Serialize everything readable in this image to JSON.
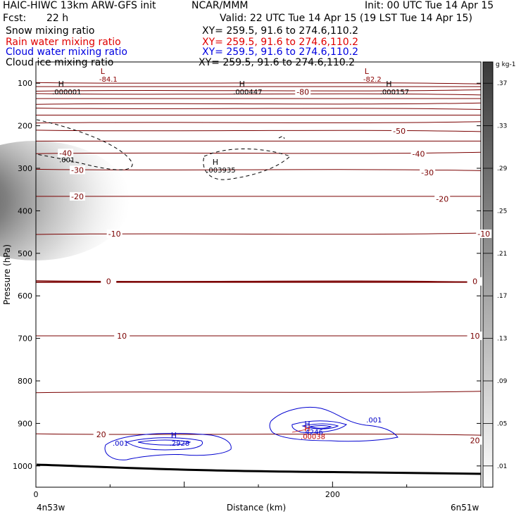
{
  "header": {
    "model": "HAIC-HIWC 13km ARW-GFS init",
    "org": "NCAR/MMM",
    "init": "Init: 00 UTC Tue 14 Apr 15",
    "fcst_label": "Fcst:",
    "fcst_value": "22 h",
    "valid": "Valid: 22 UTC Tue 14 Apr 15 (19 LST Tue 14 Apr 15)",
    "fields": [
      {
        "name": "Snow mixing ratio",
        "xy": "XY= 259.5, 91.6 to 274.6,110.2",
        "color": "#000000"
      },
      {
        "name": "Rain water mixing ratio",
        "xy": "XY= 259.5, 91.6 to 274.6,110.2",
        "color": "#e00000"
      },
      {
        "name": "Cloud water mixing ratio",
        "xy": "XY= 259.5, 91.6 to 274.6,110.2",
        "color": "#0000e0"
      },
      {
        "name": "Cloud ice mixing ratio",
        "xy": "XY= 259.5, 91.6 to 274.6,110.2",
        "color": "#000000"
      }
    ]
  },
  "chart_data": {
    "type": "contour",
    "xlabel": "Distance (km)",
    "ylabel": "Pressure (hPa)",
    "xlim": [
      0,
      300
    ],
    "ylim": [
      1050,
      50
    ],
    "x_ticks": [
      0,
      200
    ],
    "y_ticks": [
      100,
      200,
      300,
      400,
      500,
      600,
      700,
      800,
      900,
      1000
    ],
    "x_endpoints": {
      "left": "4n53w",
      "right": "6n51w"
    },
    "colorbar": {
      "unit": "g kg-1",
      "labels": [
        ".01",
        ".05",
        ".09",
        ".13",
        ".17",
        ".21",
        ".25",
        ".29",
        ".33",
        ".37"
      ]
    },
    "temperature_contours": [
      {
        "label": "-80",
        "p": 120,
        "x": 180
      },
      {
        "label": "-50",
        "p": 212,
        "x": 245
      },
      {
        "label": "-40",
        "p": 264,
        "x": 20
      },
      {
        "label": "-40",
        "p": 266,
        "x": 258
      },
      {
        "label": "-30",
        "p": 304,
        "x": 28
      },
      {
        "label": "-30",
        "p": 310,
        "x": 264
      },
      {
        "label": "-20",
        "p": 366,
        "x": 28
      },
      {
        "label": "-20",
        "p": 372,
        "x": 274
      },
      {
        "label": "-10",
        "p": 454,
        "x": 53
      },
      {
        "label": "-10",
        "p": 454,
        "x": 302
      },
      {
        "label": "0",
        "p": 566,
        "x": 49
      },
      {
        "label": "0",
        "p": 566,
        "x": 296
      },
      {
        "label": "10",
        "p": 694,
        "x": 58
      },
      {
        "label": "10",
        "p": 694,
        "x": 296
      },
      {
        "label": "20",
        "p": 926,
        "x": 44
      },
      {
        "label": "20",
        "p": 940,
        "x": 296
      }
    ],
    "extrema": [
      {
        "type": "L",
        "value": "-84.1",
        "x": 45,
        "p": 78,
        "color": "#8b0000"
      },
      {
        "type": "L",
        "value": "-82.2",
        "x": 223,
        "p": 78,
        "color": "#8b0000"
      },
      {
        "type": "H",
        "value": ".000001",
        "x": 17,
        "p": 108,
        "color": "#000000"
      },
      {
        "type": "H",
        "value": ".000447",
        "x": 139,
        "p": 108,
        "color": "#000000"
      },
      {
        "type": "H",
        "value": ".000157",
        "x": 238,
        "p": 108,
        "color": "#000000"
      },
      {
        "type": "H",
        "value": ".003935",
        "x": 121,
        "p": 292,
        "color": "#000000"
      },
      {
        "type": "H",
        "value": ".2928",
        "x": 93,
        "p": 934,
        "color": "#0000c8"
      },
      {
        "type": "H",
        "value": ".4246",
        "x": 183,
        "p": 908,
        "color": "#0000c8"
      },
      {
        "type": "H",
        "value": ".00038",
        "x": 183,
        "p": 918,
        "color": "#c00000"
      }
    ],
    "contour_labels": [
      {
        "text": ".001",
        "x": 21,
        "p": 286,
        "color": "#000000"
      },
      {
        "text": ".001",
        "x": 57,
        "p": 952,
        "color": "#0000c8"
      },
      {
        "text": ".001",
        "x": 228,
        "p": 898,
        "color": "#0000c8"
      }
    ]
  }
}
